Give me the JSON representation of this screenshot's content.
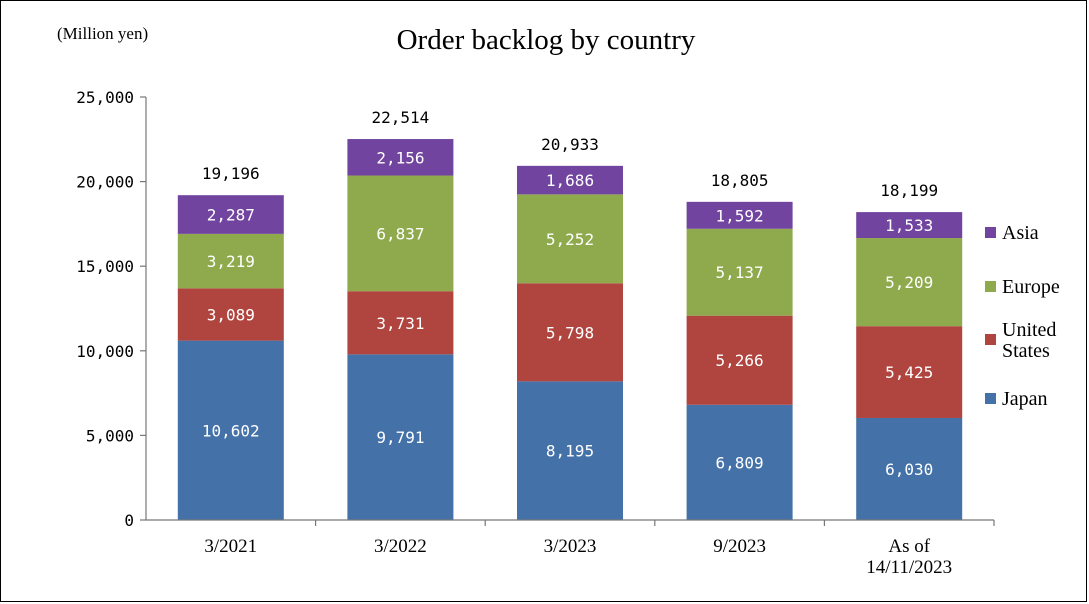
{
  "chart_data": {
    "type": "bar",
    "stacked": true,
    "title": "Order backlog by country",
    "unit_label": "(Million yen)",
    "categories": [
      [
        "3/2021"
      ],
      [
        "3/2022"
      ],
      [
        "3/2023"
      ],
      [
        "9/2023"
      ],
      [
        "As of",
        "14/11/2023"
      ]
    ],
    "series": [
      {
        "name": [
          "Japan"
        ],
        "color": "#4472a8",
        "values": [
          10602,
          9791,
          8195,
          6809,
          6030
        ]
      },
      {
        "name": [
          "United",
          "States"
        ],
        "color": "#b0453f",
        "values": [
          3089,
          3731,
          5798,
          5266,
          5425
        ]
      },
      {
        "name": [
          "Europe"
        ],
        "color": "#8faa4d",
        "values": [
          3219,
          6837,
          5252,
          5137,
          5209
        ]
      },
      {
        "name": [
          "Asia"
        ],
        "color": "#7144a0",
        "values": [
          2287,
          2156,
          1686,
          1592,
          1533
        ]
      }
    ],
    "totals": [
      19196,
      22514,
      20933,
      18805,
      18199
    ],
    "ylim": [
      0,
      25000
    ],
    "yticks": [
      0,
      5000,
      10000,
      15000,
      20000,
      25000
    ],
    "ytick_labels": [
      "0",
      "5,000",
      "10,000",
      "15,000",
      "20,000",
      "25,000"
    ],
    "grid": false,
    "legend_position": "right",
    "legend_order": [
      "Asia",
      "Europe",
      "United States",
      "Japan"
    ]
  }
}
